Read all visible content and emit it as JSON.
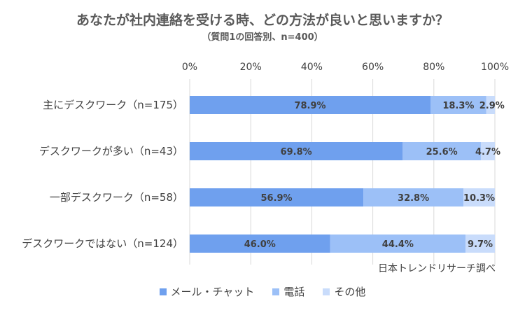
{
  "title": "あなたが社内連絡を受ける時、どの方法が良いと思いますか？",
  "subtitle": "（質問1の回答別、n=400）",
  "source": "日本トレンドリサーチ調べ",
  "colors": {
    "mail_chat": "#6fa0ee",
    "phone": "#9cc0f7",
    "other": "#c9dcfb",
    "grid": "#d9d9d9"
  },
  "chart_data": {
    "type": "bar",
    "orientation": "horizontal",
    "stacked": true,
    "xlim": [
      0,
      100
    ],
    "x_ticks": [
      "0%",
      "20%",
      "40%",
      "60%",
      "80%",
      "100%"
    ],
    "categories": [
      "主にデスクワーク（n=175）",
      "デスクワークが多い（n=43）",
      "一部デスクワーク（n=58）",
      "デスクワークではない（n=124）"
    ],
    "series": [
      {
        "name": "メール・チャット",
        "values": [
          78.9,
          69.8,
          56.9,
          46.0
        ],
        "labels": [
          "78.9%",
          "69.8%",
          "56.9%",
          "46.0%"
        ]
      },
      {
        "name": "電話",
        "values": [
          18.3,
          25.6,
          32.8,
          44.4
        ],
        "labels": [
          "18.3%",
          "25.6%",
          "32.8%",
          "44.4%"
        ]
      },
      {
        "name": "その他",
        "values": [
          2.9,
          4.7,
          10.3,
          9.7
        ],
        "labels": [
          "2.9%",
          "4.7%",
          "10.3%",
          "9.7%"
        ]
      }
    ],
    "legend_position": "bottom",
    "grid": true
  }
}
